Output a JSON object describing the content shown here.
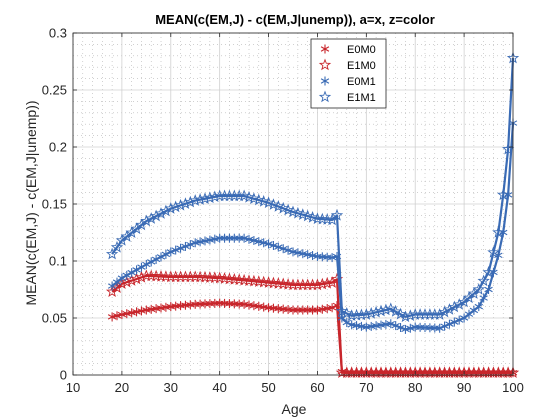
{
  "chart_data": {
    "type": "line",
    "title": "MEAN(c(EM,J) - c(EM,J|unemp)), a=x, z=color",
    "xlabel": "Age",
    "ylabel": "MEAN(c(EM,J) - c(EM,J|unemp))",
    "xlim": [
      10,
      100
    ],
    "ylim": [
      0,
      0.3
    ],
    "xticks": [
      "10",
      "20",
      "30",
      "40",
      "50",
      "60",
      "70",
      "80",
      "90",
      "100"
    ],
    "yticks": [
      "0",
      "0.05",
      "0.1",
      "0.15",
      "0.2",
      "0.25",
      "0.3"
    ],
    "grid": true,
    "minor_grid": true,
    "legend_position": "top-right",
    "x_anchors": [
      18,
      20,
      25,
      30,
      35,
      40,
      45,
      50,
      55,
      60,
      63,
      64,
      65,
      66,
      67,
      70,
      75,
      78,
      80,
      85,
      90,
      93,
      95,
      97,
      98,
      99,
      100
    ],
    "series": [
      {
        "name": "E0M0",
        "marker": "asterisk",
        "color": "#c8262c",
        "values": [
          0.051,
          0.053,
          0.057,
          0.06,
          0.062,
          0.063,
          0.062,
          0.059,
          0.057,
          0.057,
          0.059,
          0.061,
          0.003,
          0.002,
          0.002,
          0.002,
          0.002,
          0.002,
          0.002,
          0.002,
          0.002,
          0.002,
          0.002,
          0.002,
          0.002,
          0.002,
          0.002
        ]
      },
      {
        "name": "E1M0",
        "marker": "pentagram",
        "color": "#c8262c",
        "values": [
          0.073,
          0.08,
          0.087,
          0.086,
          0.086,
          0.085,
          0.083,
          0.081,
          0.079,
          0.079,
          0.081,
          0.084,
          0.002,
          0.002,
          0.002,
          0.002,
          0.002,
          0.002,
          0.002,
          0.002,
          0.002,
          0.002,
          0.002,
          0.002,
          0.002,
          0.002,
          0.002
        ]
      },
      {
        "name": "E0M1",
        "marker": "asterisk",
        "color": "#3a6bb5",
        "values": [
          0.078,
          0.085,
          0.097,
          0.108,
          0.116,
          0.12,
          0.12,
          0.115,
          0.108,
          0.104,
          0.103,
          0.104,
          0.05,
          0.046,
          0.044,
          0.042,
          0.045,
          0.04,
          0.042,
          0.041,
          0.05,
          0.06,
          0.075,
          0.105,
          0.125,
          0.158,
          0.221
        ]
      },
      {
        "name": "E1M1",
        "marker": "pentagram",
        "color": "#3a6bb5",
        "values": [
          0.106,
          0.118,
          0.135,
          0.146,
          0.153,
          0.157,
          0.157,
          0.151,
          0.143,
          0.137,
          0.136,
          0.14,
          0.056,
          0.054,
          0.052,
          0.053,
          0.058,
          0.051,
          0.053,
          0.053,
          0.064,
          0.075,
          0.09,
          0.125,
          0.158,
          0.198,
          0.278
        ]
      }
    ]
  }
}
